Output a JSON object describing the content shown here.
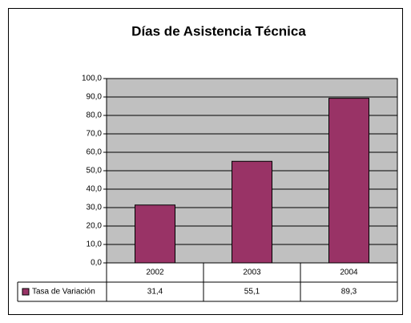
{
  "chart_data": {
    "type": "bar",
    "title": "Días de Asistencia Técnica",
    "categories": [
      "2002",
      "2003",
      "2004"
    ],
    "series": [
      {
        "name": "Tasa de Variación",
        "color": "#993366",
        "values": [
          31.4,
          55.1,
          89.3
        ],
        "value_labels": [
          "31,4",
          "55,1",
          "89,3"
        ]
      }
    ],
    "ylim": [
      0,
      100
    ],
    "yticks": [
      {
        "value": 0,
        "label": "0,0"
      },
      {
        "value": 10,
        "label": "10,0"
      },
      {
        "value": 20,
        "label": "20,0"
      },
      {
        "value": 30,
        "label": "30,0"
      },
      {
        "value": 40,
        "label": "40,0"
      },
      {
        "value": 50,
        "label": "50,0"
      },
      {
        "value": 60,
        "label": "60,0"
      },
      {
        "value": 70,
        "label": "70,0"
      },
      {
        "value": 80,
        "label": "80,0"
      },
      {
        "value": 90,
        "label": "90,0"
      },
      {
        "value": 100,
        "label": "100,0"
      }
    ],
    "grid": true,
    "plot_background": "#c0c0c0"
  }
}
